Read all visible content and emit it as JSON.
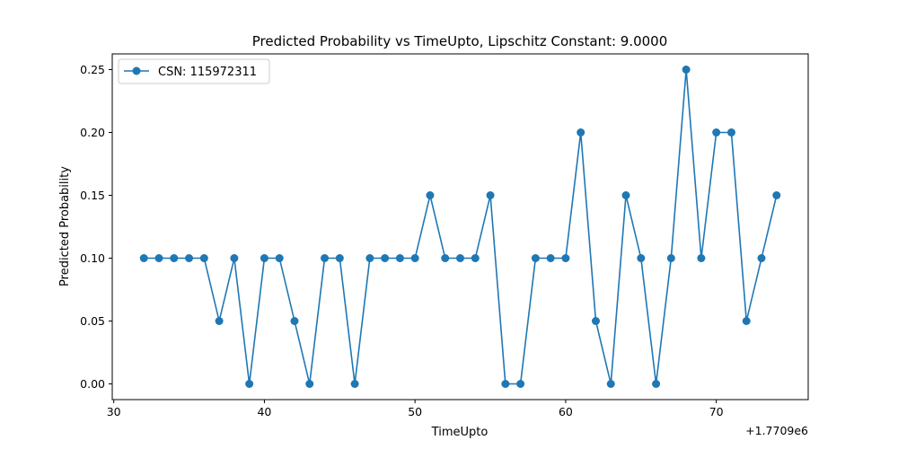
{
  "chart_data": {
    "type": "line",
    "title": "Predicted Probability vs TimeUpto, Lipschitz Constant: 9.0000",
    "xlabel": "TimeUpto",
    "ylabel": "Predicted Probability",
    "x_offset_label": "+1.7709e6",
    "xlim": [
      29.9,
      76.1
    ],
    "ylim": [
      -0.0125,
      0.2625
    ],
    "x_ticks": [
      30,
      40,
      50,
      60,
      70
    ],
    "x_tick_labels": [
      "30",
      "40",
      "50",
      "60",
      "70"
    ],
    "y_ticks": [
      0.0,
      0.05,
      0.1,
      0.15,
      0.2,
      0.25
    ],
    "y_tick_labels": [
      "0.00",
      "0.05",
      "0.10",
      "0.15",
      "0.20",
      "0.25"
    ],
    "grid": false,
    "legend_position": "top-left",
    "color": "#1f77b4",
    "series": [
      {
        "name": "CSN: 115972311",
        "x": [
          32,
          33,
          34,
          35,
          36,
          37,
          38,
          39,
          40,
          41,
          42,
          43,
          44,
          45,
          46,
          47,
          48,
          49,
          50,
          51,
          52,
          53,
          54,
          55,
          56,
          57,
          58,
          59,
          60,
          61,
          62,
          63,
          64,
          65,
          66,
          67,
          68,
          69,
          70,
          71,
          72,
          73,
          74
        ],
        "values": [
          0.1,
          0.1,
          0.1,
          0.1,
          0.1,
          0.05,
          0.1,
          0.0,
          0.1,
          0.1,
          0.05,
          0.0,
          0.1,
          0.1,
          0.0,
          0.1,
          0.1,
          0.1,
          0.1,
          0.15,
          0.1,
          0.1,
          0.1,
          0.15,
          0.0,
          0.0,
          0.1,
          0.1,
          0.1,
          0.2,
          0.05,
          0.0,
          0.15,
          0.1,
          0.0,
          0.1,
          0.25,
          0.1,
          0.2,
          0.2,
          0.05,
          0.1,
          0.15
        ]
      }
    ]
  }
}
